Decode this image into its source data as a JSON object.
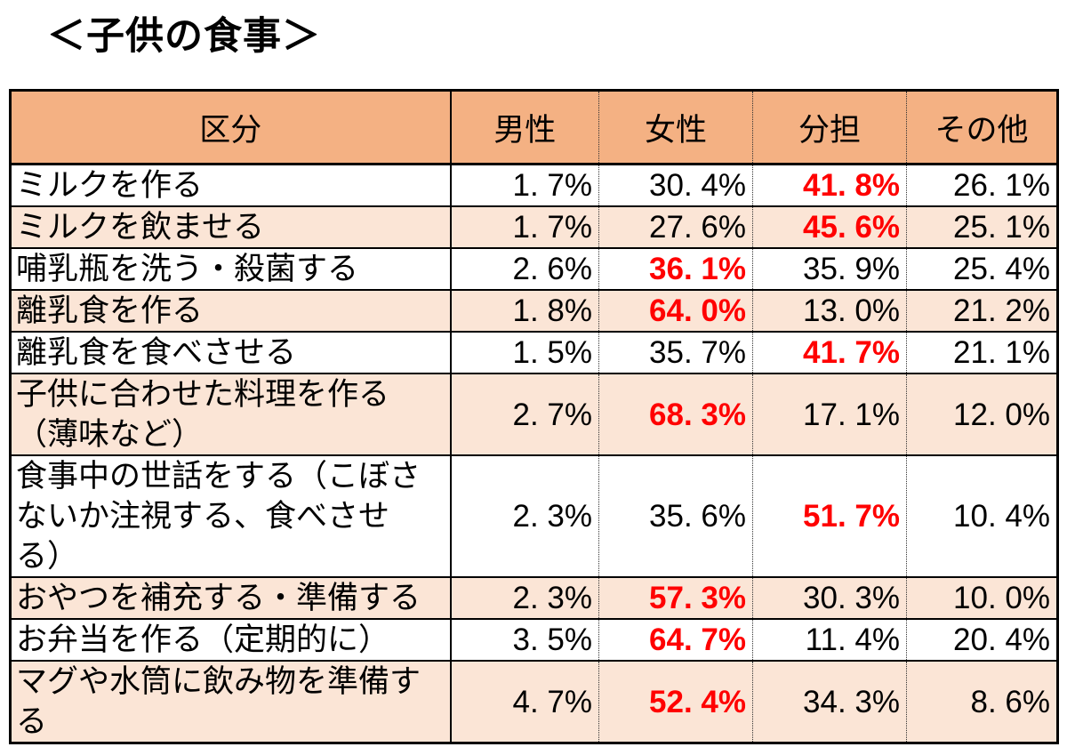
{
  "title": "＜子供の食事＞",
  "colors": {
    "header_bg": "#F4B183",
    "row_alt_bg": "#FBE5D6",
    "highlight_text": "#FF0000",
    "border": "#000000",
    "text": "#000000",
    "page_bg": "#FFFFFF"
  },
  "table": {
    "columns": [
      "区分",
      "男性",
      "女性",
      "分担",
      "その他"
    ],
    "rows": [
      {
        "label": "ミルクを作る",
        "values": [
          "1. 7%",
          "30. 4%",
          "41. 8%",
          "26. 1%"
        ],
        "highlight": 2,
        "shaded": false
      },
      {
        "label": "ミルクを飲ませる",
        "values": [
          "1. 7%",
          "27. 6%",
          "45. 6%",
          "25. 1%"
        ],
        "highlight": 2,
        "shaded": true
      },
      {
        "label": "哺乳瓶を洗う・殺菌する",
        "values": [
          "2. 6%",
          "36. 1%",
          "35. 9%",
          "25. 4%"
        ],
        "highlight": 1,
        "shaded": false
      },
      {
        "label": "離乳食を作る",
        "values": [
          "1. 8%",
          "64. 0%",
          "13. 0%",
          "21. 2%"
        ],
        "highlight": 1,
        "shaded": true
      },
      {
        "label": "離乳食を食べさせる",
        "values": [
          "1. 5%",
          "35. 7%",
          "41. 7%",
          "21. 1%"
        ],
        "highlight": 2,
        "shaded": false
      },
      {
        "label": "子供に合わせた料理を作る\n（薄味など）",
        "values": [
          "2. 7%",
          "68. 3%",
          "17. 1%",
          "12. 0%"
        ],
        "highlight": 1,
        "shaded": true
      },
      {
        "label": "食事中の世話をする（こぼさ\nないか注視する、食べさせ\nる）",
        "values": [
          "2. 3%",
          "35. 6%",
          "51. 7%",
          "10. 4%"
        ],
        "highlight": 2,
        "shaded": false
      },
      {
        "label": "おやつを補充する・準備する",
        "values": [
          "2. 3%",
          "57. 3%",
          "30. 3%",
          "10. 0%"
        ],
        "highlight": 1,
        "shaded": true
      },
      {
        "label": "お弁当を作る（定期的に）",
        "values": [
          "3. 5%",
          "64. 7%",
          "11. 4%",
          "20. 4%"
        ],
        "highlight": 1,
        "shaded": false
      },
      {
        "label": "マグや水筒に飲み物を準備す\nる",
        "values": [
          "4. 7%",
          "52. 4%",
          "34. 3%",
          "8. 6%"
        ],
        "highlight": 1,
        "shaded": true
      }
    ]
  },
  "chart_data": {
    "type": "table",
    "title": "＜子供の食事＞",
    "columns": [
      "区分",
      "男性",
      "女性",
      "分担",
      "その他"
    ],
    "categories": [
      "ミルクを作る",
      "ミルクを飲ませる",
      "哺乳瓶を洗う・殺菌する",
      "離乳食を作る",
      "離乳食を食べさせる",
      "子供に合わせた料理を作る（薄味など）",
      "食事中の世話をする（こぼさないか注視する、食べさせる）",
      "おやつを補充する・準備する",
      "お弁当を作る（定期的に）",
      "マグや水筒に飲み物を準備する"
    ],
    "series": [
      {
        "name": "男性",
        "values": [
          1.7,
          1.7,
          2.6,
          1.8,
          1.5,
          2.7,
          2.3,
          2.3,
          3.5,
          4.7
        ]
      },
      {
        "name": "女性",
        "values": [
          30.4,
          27.6,
          36.1,
          64.0,
          35.7,
          68.3,
          35.6,
          57.3,
          64.7,
          52.4
        ]
      },
      {
        "name": "分担",
        "values": [
          41.8,
          45.6,
          35.9,
          13.0,
          41.7,
          17.1,
          51.7,
          30.3,
          11.4,
          34.3
        ]
      },
      {
        "name": "その他",
        "values": [
          26.1,
          25.1,
          25.4,
          21.2,
          21.1,
          12.0,
          10.4,
          10.0,
          20.4,
          8.6
        ]
      }
    ],
    "red_highlighted_cell_per_row": [
      "分担",
      "分担",
      "女性",
      "女性",
      "分担",
      "女性",
      "分担",
      "女性",
      "女性",
      "女性"
    ],
    "unit": "%"
  }
}
